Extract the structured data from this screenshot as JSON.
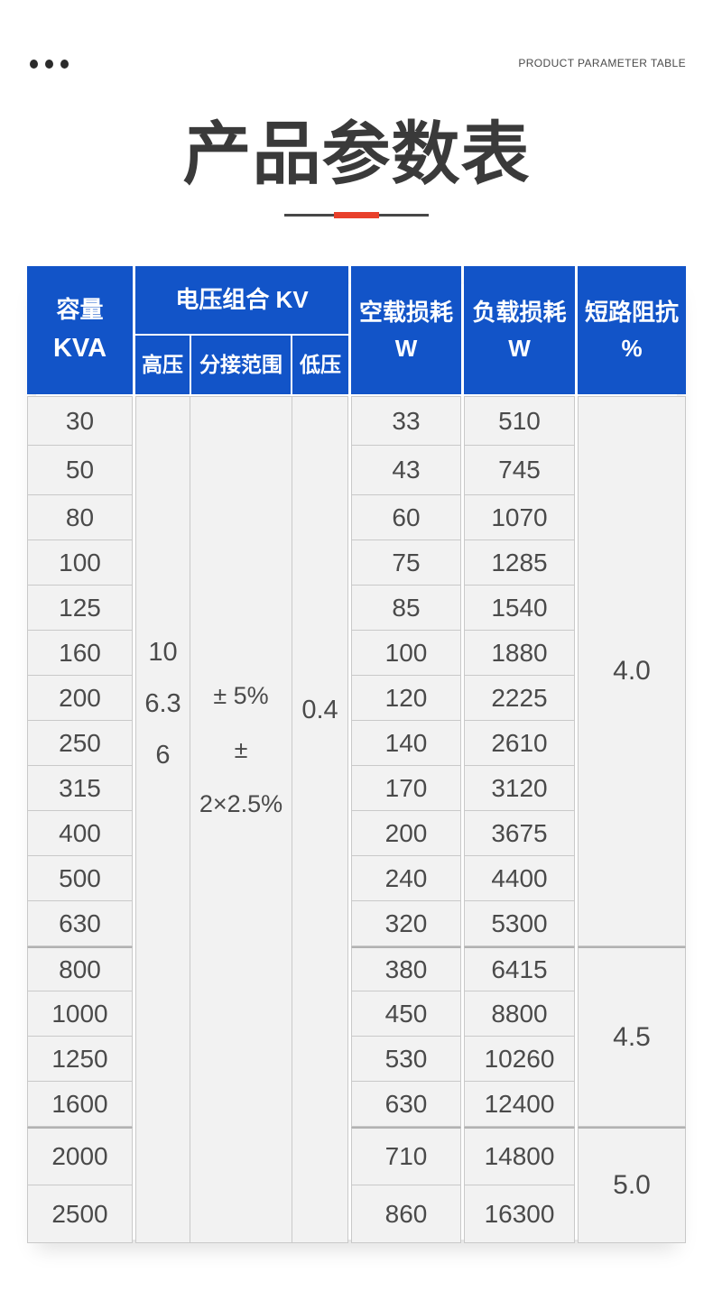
{
  "header": {
    "eyebrow": "PRODUCT PARAMETER TABLE",
    "title": "产品参数表"
  },
  "colors": {
    "header_blue": "#1254c8",
    "accent_red": "#e8402b",
    "body_bg": "#f2f2f2"
  },
  "table": {
    "columns": {
      "capacity_line1": "容量",
      "capacity_line2": "KVA",
      "voltage_group": "电压组合 KV",
      "hv": "高压",
      "tap_range": "分接范围",
      "lv": "低压",
      "no_load_line1": "空载损耗",
      "no_load_line2": "W",
      "load_line1": "负载损耗",
      "load_line2": "W",
      "impedance_line1": "短路阻抗",
      "impedance_line2": "%"
    },
    "hv_values": [
      "10",
      "6.3",
      "6"
    ],
    "tap_values": [
      "± 5%",
      "± 2×2.5%"
    ],
    "lv_value": "0.4",
    "rows": [
      {
        "kva": "30",
        "no_load": "33",
        "load": "510"
      },
      {
        "kva": "50",
        "no_load": "43",
        "load": "745"
      },
      {
        "kva": "80",
        "no_load": "60",
        "load": "1070"
      },
      {
        "kva": "100",
        "no_load": "75",
        "load": "1285"
      },
      {
        "kva": "125",
        "no_load": "85",
        "load": "1540"
      },
      {
        "kva": "160",
        "no_load": "100",
        "load": "1880"
      },
      {
        "kva": "200",
        "no_load": "120",
        "load": "2225"
      },
      {
        "kva": "250",
        "no_load": "140",
        "load": "2610"
      },
      {
        "kva": "315",
        "no_load": "170",
        "load": "3120"
      },
      {
        "kva": "400",
        "no_load": "200",
        "load": "3675"
      },
      {
        "kva": "500",
        "no_load": "240",
        "load": "4400"
      },
      {
        "kva": "630",
        "no_load": "320",
        "load": "5300"
      },
      {
        "kva": "800",
        "no_load": "380",
        "load": "6415"
      },
      {
        "kva": "1000",
        "no_load": "450",
        "load": "8800"
      },
      {
        "kva": "1250",
        "no_load": "530",
        "load": "10260"
      },
      {
        "kva": "1600",
        "no_load": "630",
        "load": "12400"
      },
      {
        "kva": "2000",
        "no_load": "710",
        "load": "14800"
      },
      {
        "kva": "2500",
        "no_load": "860",
        "load": "16300"
      }
    ],
    "impedance_groups": [
      {
        "value": "4.0",
        "rows": 12
      },
      {
        "value": "4.5",
        "rows": 4
      },
      {
        "value": "5.0",
        "rows": 2
      }
    ]
  }
}
